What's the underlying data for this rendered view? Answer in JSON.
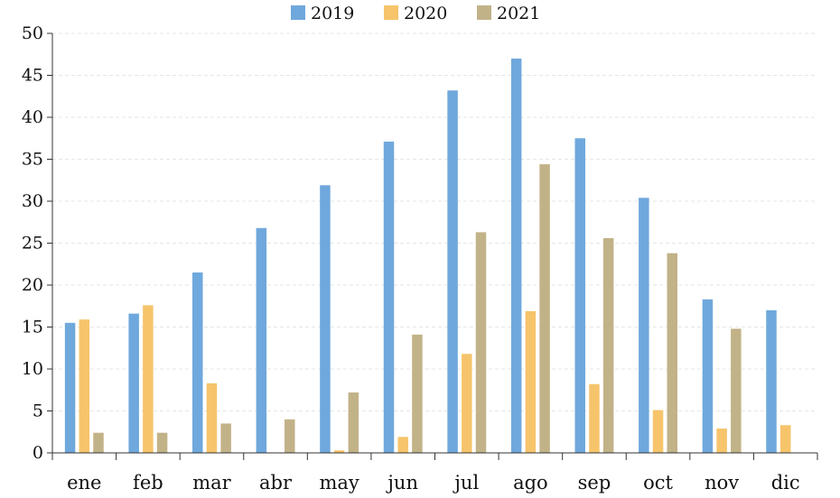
{
  "chart_data": {
    "type": "bar",
    "categories": [
      "ene",
      "feb",
      "mar",
      "abr",
      "may",
      "jun",
      "jul",
      "ago",
      "sep",
      "oct",
      "nov",
      "dic"
    ],
    "series": [
      {
        "name": "2019",
        "color": "#6fa8dc",
        "values": [
          15.5,
          16.6,
          21.5,
          26.8,
          31.9,
          37.1,
          43.2,
          47.0,
          37.5,
          30.4,
          18.3,
          17.0
        ]
      },
      {
        "name": "2020",
        "color": "#f6c46b",
        "values": [
          15.9,
          17.6,
          8.3,
          0,
          0.3,
          1.9,
          11.8,
          16.9,
          8.2,
          5.1,
          2.9,
          3.3
        ]
      },
      {
        "name": "2021",
        "color": "#c2b288",
        "values": [
          2.4,
          2.4,
          3.5,
          4.0,
          7.2,
          14.1,
          26.3,
          34.4,
          25.6,
          23.8,
          14.8,
          0
        ]
      }
    ],
    "yticks": [
      "0",
      "5",
      "10",
      "15",
      "20",
      "25",
      "30",
      "35",
      "40",
      "45",
      "50"
    ],
    "ylim": [
      0,
      50
    ],
    "title": "",
    "xlabel": "",
    "ylabel": "",
    "grid": true,
    "legend_position": "top-center"
  }
}
